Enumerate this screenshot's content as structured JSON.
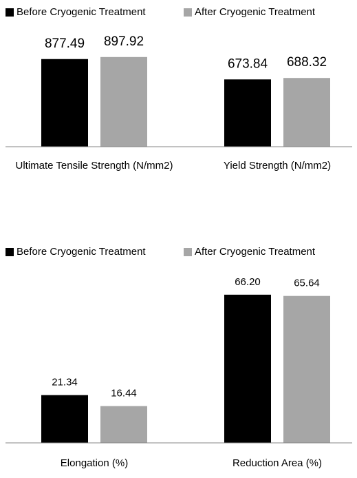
{
  "chart_data": [
    {
      "type": "bar",
      "categories": [
        "Ultimate Tensile Strength (N/mm2)",
        "Yield Strength (N/mm2)"
      ],
      "series": [
        {
          "name": "Before Cryogenic Treatment",
          "color": "#000000",
          "values": [
            877.49,
            673.84
          ],
          "value_labels": [
            "877.49",
            "673.84"
          ]
        },
        {
          "name": "After Cryogenic Treatment",
          "color": "#a6a6a6",
          "values": [
            897.92,
            688.32
          ],
          "value_labels": [
            "897.92",
            "688.32"
          ]
        }
      ],
      "ylim": [
        0,
        1000
      ]
    },
    {
      "type": "bar",
      "categories": [
        "Elongation (%)",
        "Reduction Area (%)"
      ],
      "series": [
        {
          "name": "Before Cryogenic Treatment",
          "color": "#000000",
          "values": [
            21.34,
            66.2
          ],
          "value_labels": [
            "21.34",
            "66.20"
          ]
        },
        {
          "name": "After Cryogenic Treatment",
          "color": "#a6a6a6",
          "values": [
            16.44,
            65.64
          ],
          "value_labels": [
            "16.44",
            "65.64"
          ]
        }
      ],
      "ylim": [
        0,
        80
      ]
    }
  ]
}
